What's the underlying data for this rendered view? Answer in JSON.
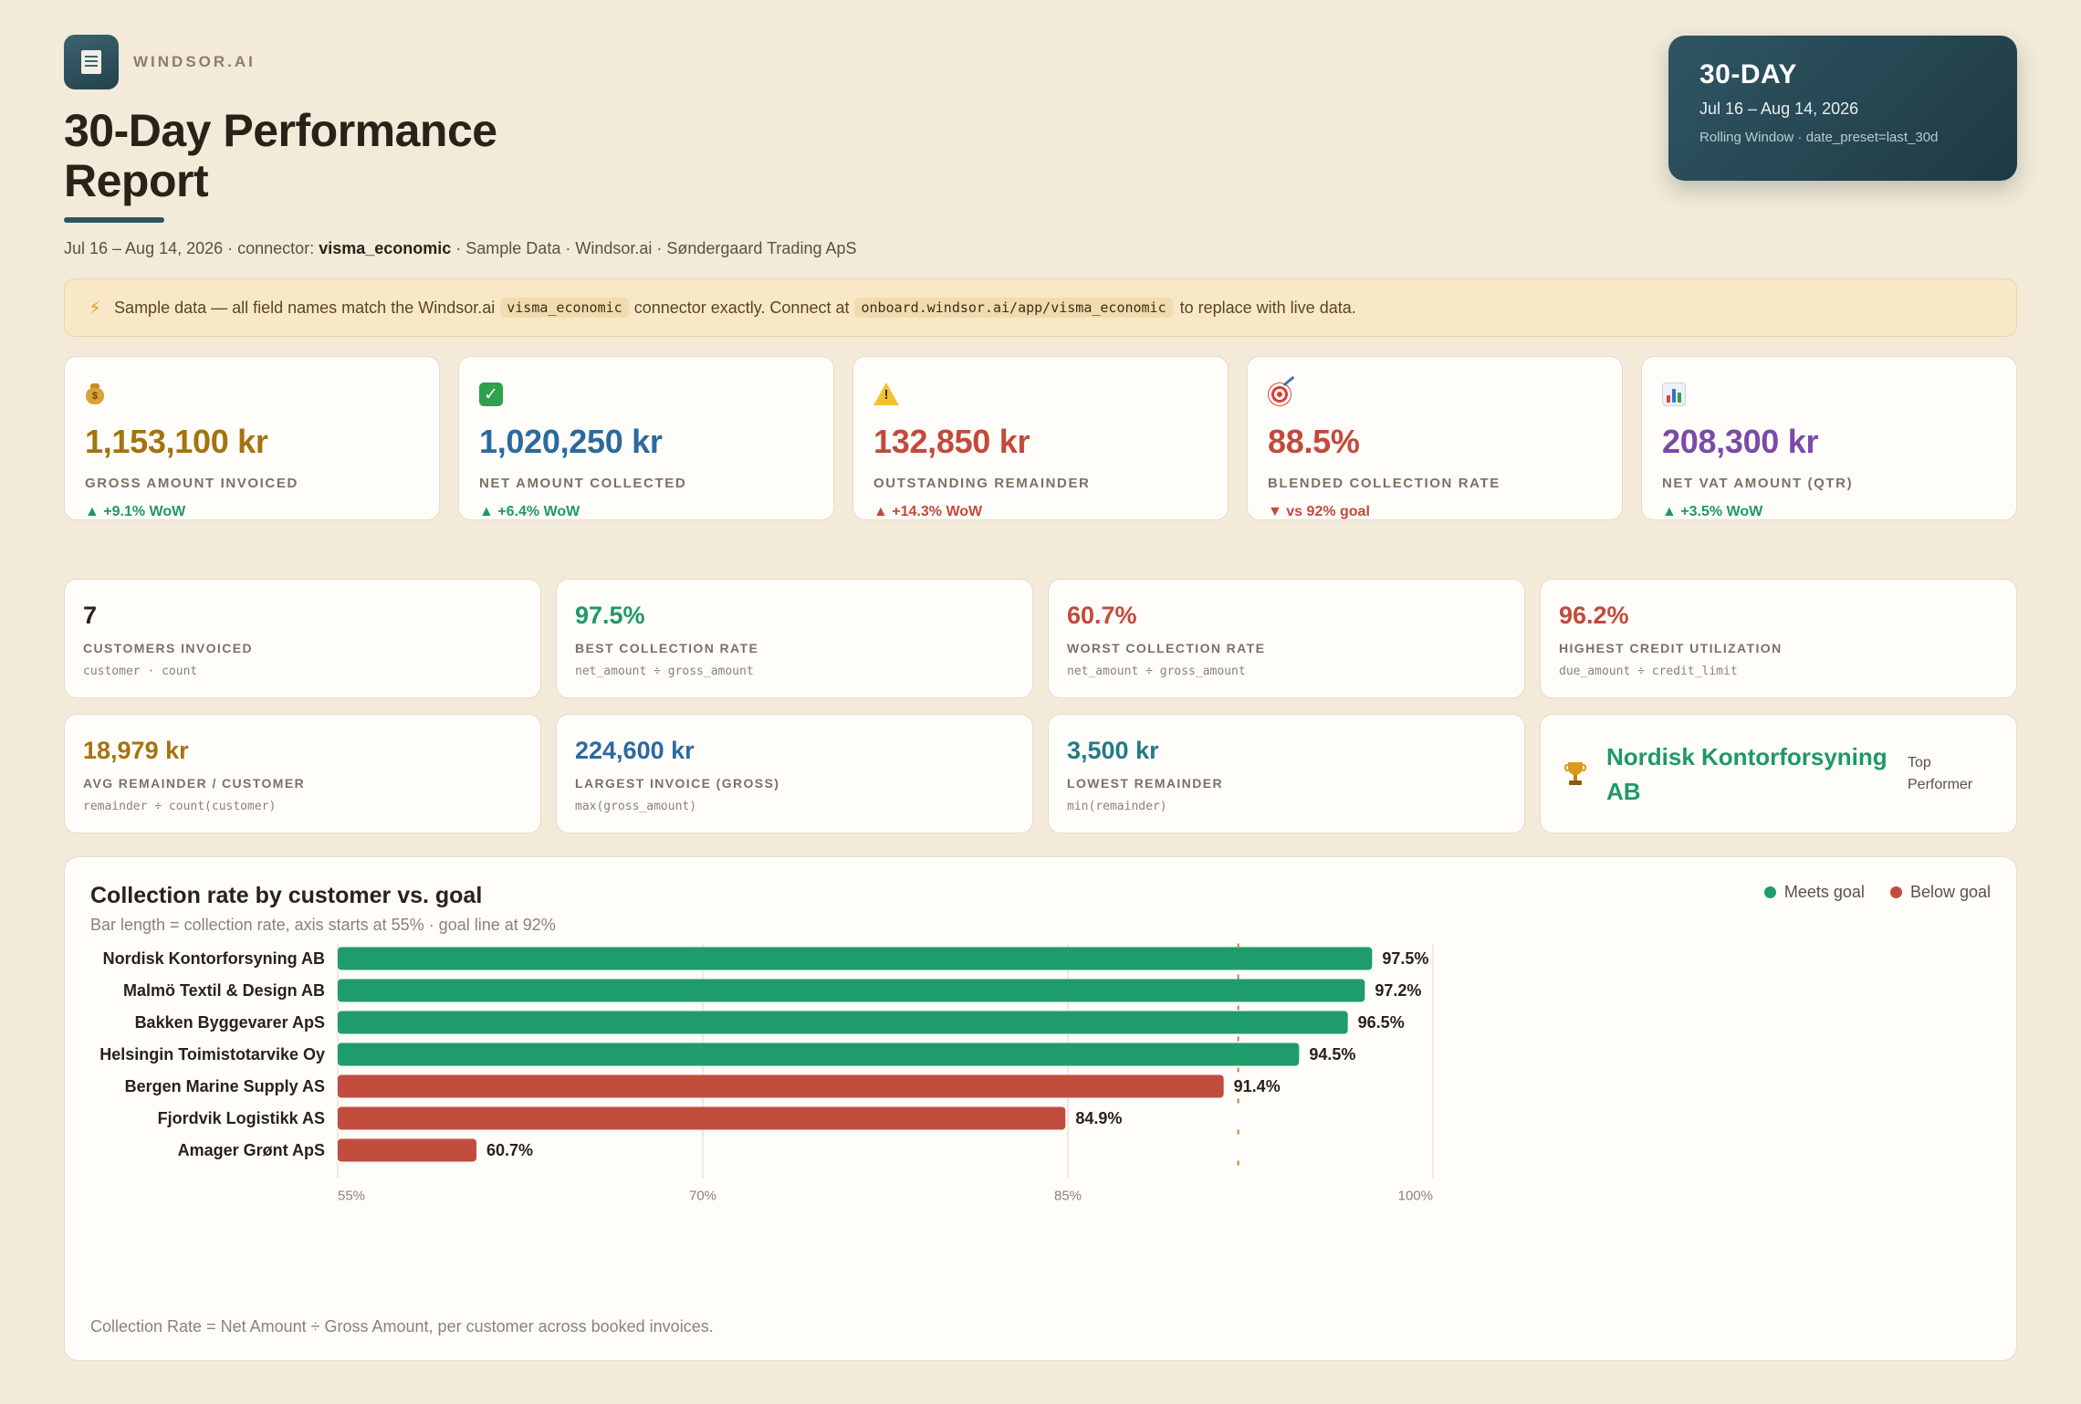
{
  "brand": {
    "name": "WINDSOR.AI",
    "logo_icon": "report-document-icon"
  },
  "header": {
    "title": "30-Day Performance Report",
    "subtitle_pre": "Jul 16 – Aug 14, 2026 · connector: ",
    "subtitle_connector": "visma_economic",
    "subtitle_post": " · Sample Data · Windsor.ai · Søndergaard Trading ApS"
  },
  "period": {
    "label": "30-DAY",
    "range": "Jul 16 – Aug 14, 2026",
    "detail": "Rolling Window · date_preset=last_30d"
  },
  "notice": {
    "icon": "lightning-icon",
    "text_1": "Sample data — all field names match the Windsor.ai",
    "code_1": "visma_economic",
    "text_2": "connector exactly. Connect at",
    "code_2": "onboard.windsor.ai/app/visma_economic",
    "text_3": "to replace with live data."
  },
  "kpis": [
    {
      "icon": "money-bag-icon",
      "value": "1,153,100 kr",
      "label": "GROSS AMOUNT INVOICED",
      "delta": "▲ +9.1% WoW",
      "value_color": "#a4730f",
      "delta_color": "#1f9868"
    },
    {
      "icon": "check-mark-icon",
      "value": "1,020,250 kr",
      "label": "NET AMOUNT COLLECTED",
      "delta": "▲ +6.4% WoW",
      "value_color": "#2a6aa0",
      "delta_color": "#1f9868"
    },
    {
      "icon": "warning-icon",
      "value": "132,850 kr",
      "label": "OUTSTANDING REMAINDER",
      "delta": "▲ +14.3% WoW",
      "value_color": "#c24a3c",
      "delta_color": "#c24a3c"
    },
    {
      "icon": "target-icon",
      "value": "88.5%",
      "label": "BLENDED COLLECTION RATE",
      "delta": "▼ vs 92% goal",
      "value_color": "#c24a3c",
      "delta_color": "#c24a3c"
    },
    {
      "icon": "bar-chart-icon",
      "value": "208,300 kr",
      "label": "NET VAT AMOUNT (QTR)",
      "delta": "▲ +3.5% WoW",
      "value_color": "#7a4aa8",
      "delta_color": "#1f9868"
    }
  ],
  "metrics_row1": [
    {
      "value": "7",
      "label": "CUSTOMERS INVOICED",
      "formula": "customer · count",
      "value_color": "#2a2118"
    },
    {
      "value": "97.5%",
      "label": "BEST COLLECTION RATE",
      "formula": "net_amount ÷ gross_amount",
      "value_color": "#1f9868"
    },
    {
      "value": "60.7%",
      "label": "WORST COLLECTION RATE",
      "formula": "net_amount ÷ gross_amount",
      "value_color": "#c24a3c"
    },
    {
      "value": "96.2%",
      "label": "HIGHEST CREDIT UTILIZATION",
      "formula": "due_amount ÷ credit_limit",
      "value_color": "#c24a3c"
    }
  ],
  "metrics_row2": [
    {
      "value": "18,979 kr",
      "label": "AVG REMAINDER / CUSTOMER",
      "formula": "remainder ÷ count(customer)",
      "value_color": "#a4730f"
    },
    {
      "value": "224,600 kr",
      "label": "LARGEST INVOICE (GROSS)",
      "formula": "max(gross_amount)",
      "value_color": "#2a6aa0"
    },
    {
      "value": "3,500 kr",
      "label": "LOWEST REMAINDER",
      "formula": "min(remainder)",
      "value_color": "#237a8a"
    }
  ],
  "top_performer": {
    "icon": "trophy-icon",
    "name": "Nordisk Kontorforsyning AB",
    "tag": "Top Performer"
  },
  "chart": {
    "title": "Collection rate by customer vs. goal",
    "subtitle": "Bar length = collection rate, axis starts at 55% · goal line at 92%",
    "legend": [
      {
        "label": "Meets goal",
        "color": "#1f9c6c"
      },
      {
        "label": "Below goal",
        "color": "#c24d3e"
      }
    ],
    "footnote": "Collection Rate = Net Amount ÷ Gross Amount, per customer across booked invoices."
  },
  "chart_data": {
    "type": "bar",
    "orientation": "horizontal",
    "title": "Collection rate by customer vs. goal",
    "categories": [
      "Nordisk Kontorforsyning AB",
      "Malmö Textil & Design AB",
      "Bakken Byggevarer ApS",
      "Helsingin Toimistotarvike Oy",
      "Bergen Marine Supply AS",
      "Fjordvik Logistikk AS",
      "Amager Grønt ApS"
    ],
    "values": [
      97.5,
      97.2,
      96.5,
      94.5,
      91.4,
      84.9,
      60.7
    ],
    "value_labels": [
      "97.5%",
      "97.2%",
      "96.5%",
      "94.5%",
      "91.4%",
      "84.9%",
      "60.7%"
    ],
    "xlim": [
      55,
      100
    ],
    "xticks": [
      55,
      70,
      85,
      100
    ],
    "xtick_labels": [
      "55%",
      "70%",
      "85%",
      "100%"
    ],
    "goal": 92,
    "grid": true,
    "meets_color": "#1f9c6c",
    "below_color": "#c24d3e",
    "goal_color": "#d97a3a"
  }
}
